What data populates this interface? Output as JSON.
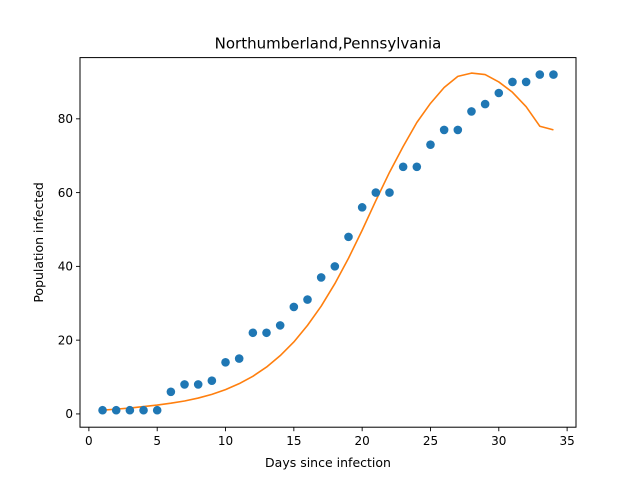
{
  "chart_data": {
    "type": "scatter",
    "title": "Northumberland,Pennsylvania",
    "xlabel": "Days since infection",
    "ylabel": "Population infected",
    "xlim": [
      -0.65,
      35.65
    ],
    "ylim": [
      -3.6,
      96.6
    ],
    "xticks": [
      0,
      5,
      10,
      15,
      20,
      25,
      30,
      35
    ],
    "yticks": [
      0,
      20,
      40,
      60,
      80
    ],
    "grid": false,
    "legend": "none",
    "colors": {
      "observed": "#1f77b4",
      "fit": "#ff7f0e"
    },
    "series": [
      {
        "type": "scatter",
        "x": [
          1,
          2,
          3,
          4,
          5,
          6,
          7,
          8,
          9,
          10,
          11,
          12,
          13,
          14,
          15,
          16,
          17,
          18,
          19,
          20,
          21,
          22,
          23,
          24,
          25,
          26,
          27,
          28,
          29,
          30,
          31,
          32,
          33,
          34
        ],
        "values": [
          1,
          1,
          1,
          1,
          1,
          6,
          8,
          8,
          9,
          14,
          15,
          22,
          22,
          24,
          29,
          31,
          37,
          40,
          48,
          56,
          60,
          60,
          67,
          67,
          73,
          77,
          77,
          82,
          84,
          87,
          90,
          90,
          92,
          92
        ]
      },
      {
        "type": "line",
        "x": [
          1,
          2,
          3,
          4,
          5,
          6,
          7,
          8,
          9,
          10,
          11,
          12,
          13,
          14,
          15,
          16,
          17,
          18,
          19,
          20,
          21,
          22,
          23,
          24,
          25,
          26,
          27,
          28,
          29,
          30,
          31,
          32,
          33,
          34
        ],
        "values": [
          1.0,
          1.3,
          1.6,
          2.0,
          2.4,
          2.9,
          3.5,
          4.3,
          5.3,
          6.6,
          8.2,
          10.2,
          12.7,
          15.8,
          19.5,
          24.0,
          29.2,
          35.3,
          42.2,
          49.8,
          57.8,
          65.5,
          72.5,
          79.0,
          84.2,
          88.5,
          91.5,
          92.4,
          92.0,
          90.0,
          87.2,
          83.3,
          78.0,
          77.0
        ]
      }
    ]
  }
}
